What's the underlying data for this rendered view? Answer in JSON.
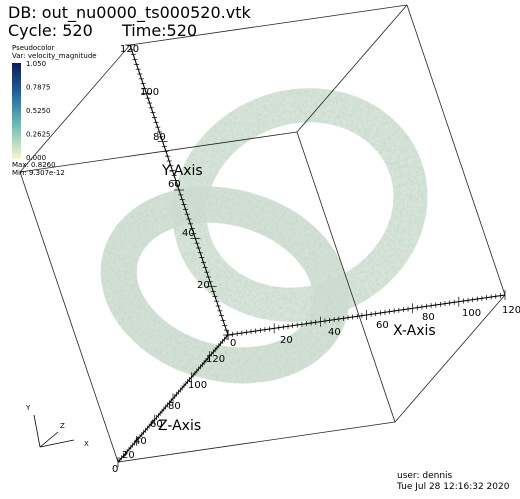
{
  "header": {
    "db": "DB: out_nu0000_ts000520.vtk",
    "cycle": "Cycle: 520",
    "time": "Time:520"
  },
  "legend": {
    "title": "Pseudocolor",
    "variable": "Var: velocity_magnitude",
    "labels": [
      "1.050",
      "0.7875",
      "0.5250",
      "0.2625",
      "0.000"
    ],
    "max": "Max: 0.8260",
    "min": "Min: 9.307e-12"
  },
  "axes": {
    "y": {
      "title": "Y-Axis",
      "ticks": [
        "20",
        "40",
        "60",
        "80",
        "100",
        "120"
      ]
    },
    "x": {
      "title": "X-Axis",
      "ticks": [
        "0",
        "20",
        "40",
        "60",
        "80",
        "100",
        "120"
      ]
    },
    "z": {
      "title": "Z-Axis",
      "ticks": [
        "0",
        "20",
        "40",
        "60",
        "80",
        "100",
        "120"
      ]
    }
  },
  "triad": {
    "y": "Y",
    "z": "Z",
    "x": "X"
  },
  "footer": {
    "user": "user: dennis",
    "date": "Tue Jul 28 12:16:32 2020"
  }
}
